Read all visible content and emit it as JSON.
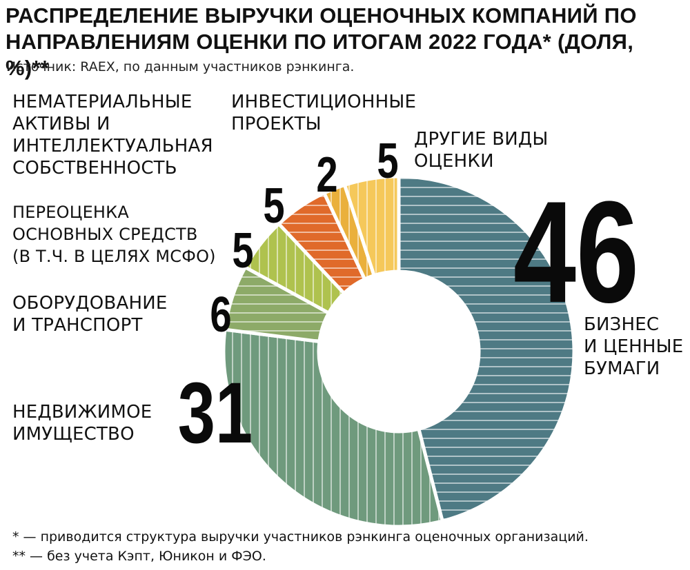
{
  "header": {
    "title_lines": [
      "РАСПРЕДЕЛЕНИЕ ВЫРУЧКИ ОЦЕНОЧНЫХ КОМПАНИЙ ПО",
      "НАПРАВЛЕНИЯМ ОЦЕНКИ ПО ИТОГАМ 2022 ГОДА* (ДОЛЯ, %)**"
    ],
    "source": "Источник: RAEX, по данным участников рэнкинга."
  },
  "chart_data": {
    "type": "pie",
    "variant": "donut",
    "title": "РАСПРЕДЕЛЕНИЕ ВЫРУЧКИ ОЦЕНОЧНЫХ КОМПАНИЙ ПО НАПРАВЛЕНИЯМ ОЦЕНКИ ПО ИТОГАМ 2022 ГОДА* (ДОЛЯ, %)**",
    "unit": "%",
    "slices": [
      {
        "key": "business",
        "value": 46,
        "value_label": "46",
        "label_lines": [
          "БИЗНЕС",
          "И ЦЕННЫЕ",
          "БУМАГИ"
        ],
        "color": "#4e7a84",
        "hatch": "horizontal"
      },
      {
        "key": "realestate",
        "value": 31,
        "value_label": "31",
        "label_lines": [
          "НЕДВИЖИМОЕ",
          "ИМУЩЕСТВО"
        ],
        "color": "#6f9a7d",
        "hatch": "vertical"
      },
      {
        "key": "equipment",
        "value": 6,
        "value_label": "6",
        "label_lines": [
          "ОБОРУДОВАНИЕ",
          "И ТРАНСПОРТ"
        ],
        "color": "#8daa68",
        "hatch": "horizontal"
      },
      {
        "key": "revaluation",
        "value": 5,
        "value_label": "5",
        "label_lines": [
          "ПЕРЕОЦЕНКА",
          "ОСНОВНЫХ СРЕДСТВ",
          "(В Т.Ч. В ЦЕЛЯХ МСФО)"
        ],
        "color": "#afc24e",
        "hatch": "vertical"
      },
      {
        "key": "intangible",
        "value": 5,
        "value_label": "5",
        "label_lines": [
          "НЕМАТЕРИАЛЬНЫЕ",
          "АКТИВЫ И",
          "ИНТЕЛЛЕКТУАЛЬНАЯ",
          "СОБСТВЕННОСТЬ"
        ],
        "color": "#e06a2a",
        "hatch": "horizontal"
      },
      {
        "key": "investment",
        "value": 2,
        "value_label": "2",
        "label_lines": [
          "ИНВЕСТИЦИОННЫЕ",
          "ПРОЕКТЫ"
        ],
        "color": "#eab03c",
        "hatch": "vertical"
      },
      {
        "key": "other",
        "value": 5,
        "value_label": "5",
        "label_lines": [
          "ДРУГИЕ ВИДЫ",
          "ОЦЕНКИ"
        ],
        "color": "#f5c85a",
        "hatch": "vertical"
      }
    ]
  },
  "footnotes": [
    "* — приводится структура выручки участников рэнкинга оценочных организаций.",
    "** — без учета Кэпт, Юникон и ФЭО."
  ]
}
